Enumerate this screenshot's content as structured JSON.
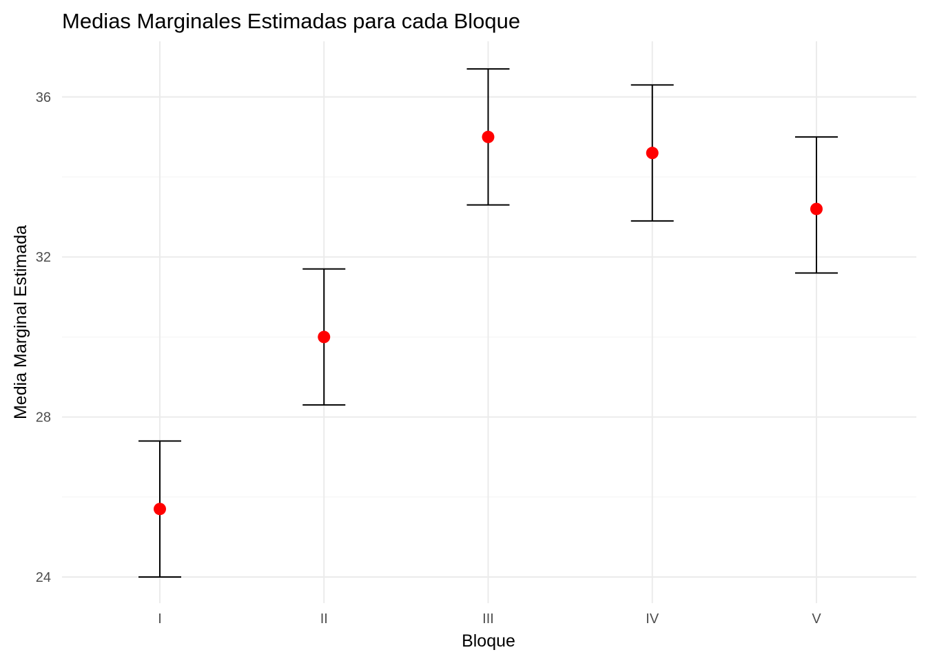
{
  "chart_data": {
    "type": "scatter",
    "title": "Medias Marginales Estimadas para cada Bloque",
    "xlabel": "Bloque",
    "ylabel": "Media Marginal Estimada",
    "categories": [
      "I",
      "II",
      "III",
      "IV",
      "V"
    ],
    "series": [
      {
        "values": [
          25.7,
          30.0,
          35.0,
          34.6,
          33.2
        ],
        "lower": [
          24.0,
          28.3,
          33.3,
          32.9,
          31.6
        ],
        "upper": [
          27.4,
          31.7,
          36.7,
          36.3,
          35.0
        ]
      }
    ],
    "yticks": [
      24,
      28,
      32,
      36
    ],
    "ylim": [
      23.5,
      37.4
    ],
    "grid": true,
    "legend": "none",
    "colors": {
      "point": "#ff0000",
      "errorbar": "#000000"
    }
  }
}
